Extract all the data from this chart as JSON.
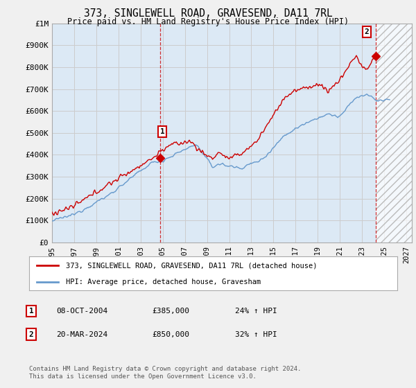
{
  "title": "373, SINGLEWELL ROAD, GRAVESEND, DA11 7RL",
  "subtitle": "Price paid vs. HM Land Registry's House Price Index (HPI)",
  "ylim": [
    0,
    1000000
  ],
  "yticks": [
    0,
    100000,
    200000,
    300000,
    400000,
    500000,
    600000,
    700000,
    800000,
    900000,
    1000000
  ],
  "ytick_labels": [
    "£0",
    "£100K",
    "£200K",
    "£300K",
    "£400K",
    "£500K",
    "£600K",
    "£700K",
    "£800K",
    "£900K",
    "£1M"
  ],
  "xlim_start": 1995.0,
  "xlim_end": 2027.5,
  "xticks": [
    1995,
    1997,
    1999,
    2001,
    2003,
    2005,
    2007,
    2009,
    2011,
    2013,
    2015,
    2017,
    2019,
    2021,
    2023,
    2025,
    2027
  ],
  "grid_color": "#cccccc",
  "background_color": "#f0f0f0",
  "plot_bg_color": "#dce9f5",
  "red_line_color": "#cc0000",
  "blue_line_color": "#6699cc",
  "vline_color": "#cc0000",
  "point1_x": 2004.77,
  "point1_y": 385000,
  "point2_x": 2024.22,
  "point2_y": 850000,
  "legend_red_label": "373, SINGLEWELL ROAD, GRAVESEND, DA11 7RL (detached house)",
  "legend_blue_label": "HPI: Average price, detached house, Gravesham",
  "table_row1_num": "1",
  "table_row1_date": "08-OCT-2004",
  "table_row1_price": "£385,000",
  "table_row1_hpi": "24% ↑ HPI",
  "table_row2_num": "2",
  "table_row2_date": "20-MAR-2024",
  "table_row2_price": "£850,000",
  "table_row2_hpi": "32% ↑ HPI",
  "footer": "Contains HM Land Registry data © Crown copyright and database right 2024.\nThis data is licensed under the Open Government Licence v3.0.",
  "hatched_region_start": 2024.22,
  "hatched_region_end": 2027.5
}
